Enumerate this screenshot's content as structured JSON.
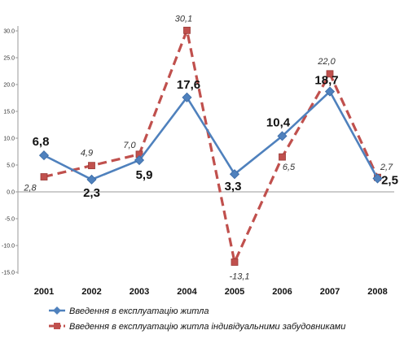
{
  "chart_data": {
    "type": "line",
    "categories": [
      "2001",
      "2002",
      "2003",
      "2004",
      "2005",
      "2006",
      "2007",
      "2008"
    ],
    "ylim": [
      -15,
      30
    ],
    "yticks": [
      "-15.0",
      "-10.0",
      "-5.0",
      "0.0",
      "5.0",
      "10.0",
      "15.0",
      "20.0",
      "25.0",
      "30.0"
    ],
    "grid": false,
    "legend_position": "bottom-left",
    "series": [
      {
        "name": "Введення в експлуатацію житла",
        "values": [
          6.8,
          2.3,
          5.9,
          17.6,
          3.3,
          10.4,
          18.7,
          2.5
        ],
        "labels": [
          "6,8",
          "2,3",
          "5,9",
          "17,6",
          "3,3",
          "10,4",
          "18,7",
          "2,5"
        ],
        "color": "#4f81bd",
        "line_style": "solid",
        "marker": "diamond"
      },
      {
        "name": "Введення в експлуатацію житла індивідуальними забудовниками",
        "values": [
          2.8,
          4.9,
          7.0,
          30.1,
          -13.1,
          6.5,
          22.0,
          2.7
        ],
        "labels": [
          "2,8",
          "4,9",
          "7,0",
          "30,1",
          "-13,1",
          "6,5",
          "22,0",
          "2,7"
        ],
        "color": "#c0504d",
        "line_style": "dashed",
        "marker": "square"
      }
    ]
  }
}
